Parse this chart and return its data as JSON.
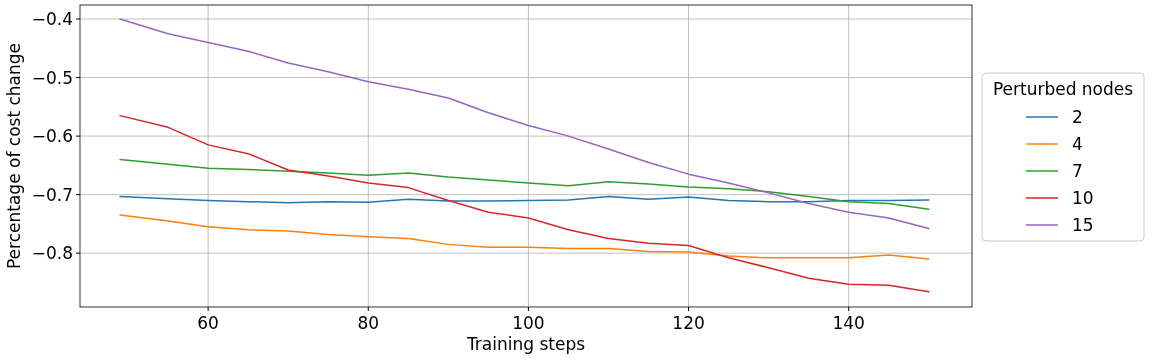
{
  "chart_data": {
    "type": "line",
    "xlabel": "Training steps",
    "ylabel": "Percentage of cost change",
    "legend_title": "Perturbed nodes",
    "x": [
      49,
      55,
      60,
      65,
      70,
      75,
      80,
      85,
      90,
      95,
      100,
      105,
      110,
      115,
      120,
      125,
      130,
      135,
      140,
      145,
      150
    ],
    "series": [
      {
        "name": "2",
        "color": "#1f77b4",
        "values": [
          -0.703,
          -0.707,
          -0.71,
          -0.712,
          -0.714,
          -0.712,
          -0.713,
          -0.708,
          -0.711,
          -0.711,
          -0.71,
          -0.709,
          -0.703,
          -0.708,
          -0.704,
          -0.71,
          -0.712,
          -0.712,
          -0.71,
          -0.71,
          -0.709
        ]
      },
      {
        "name": "4",
        "color": "#ff7f0e",
        "values": [
          -0.735,
          -0.745,
          -0.755,
          -0.76,
          -0.762,
          -0.768,
          -0.772,
          -0.775,
          -0.785,
          -0.79,
          -0.79,
          -0.792,
          -0.792,
          -0.797,
          -0.798,
          -0.805,
          -0.808,
          -0.808,
          -0.808,
          -0.803,
          -0.81
        ]
      },
      {
        "name": "7",
        "color": "#2ca02c",
        "values": [
          -0.64,
          -0.648,
          -0.655,
          -0.657,
          -0.66,
          -0.663,
          -0.667,
          -0.663,
          -0.67,
          -0.675,
          -0.68,
          -0.685,
          -0.678,
          -0.682,
          -0.687,
          -0.69,
          -0.695,
          -0.703,
          -0.712,
          -0.715,
          -0.725
        ]
      },
      {
        "name": "10",
        "color": "#d62728",
        "values": [
          -0.565,
          -0.585,
          -0.615,
          -0.63,
          -0.658,
          -0.668,
          -0.68,
          -0.688,
          -0.71,
          -0.73,
          -0.74,
          -0.76,
          -0.775,
          -0.783,
          -0.787,
          -0.808,
          -0.825,
          -0.843,
          -0.853,
          -0.855,
          -0.866
        ]
      },
      {
        "name": "15",
        "color": "#9467bd",
        "values": [
          -0.4,
          -0.425,
          -0.44,
          -0.455,
          -0.475,
          -0.49,
          -0.507,
          -0.52,
          -0.535,
          -0.56,
          -0.582,
          -0.6,
          -0.622,
          -0.645,
          -0.665,
          -0.68,
          -0.697,
          -0.715,
          -0.73,
          -0.74,
          -0.758
        ]
      }
    ],
    "xlim": [
      44,
      155.4
    ],
    "ylim": [
      -0.892,
      -0.376
    ],
    "xticks": [
      60,
      80,
      100,
      120,
      140
    ],
    "yticks": [
      -0.4,
      -0.5,
      -0.6,
      -0.7,
      -0.8
    ],
    "grid": true,
    "legend": "right",
    "marker": "none",
    "line_style": "solid"
  }
}
